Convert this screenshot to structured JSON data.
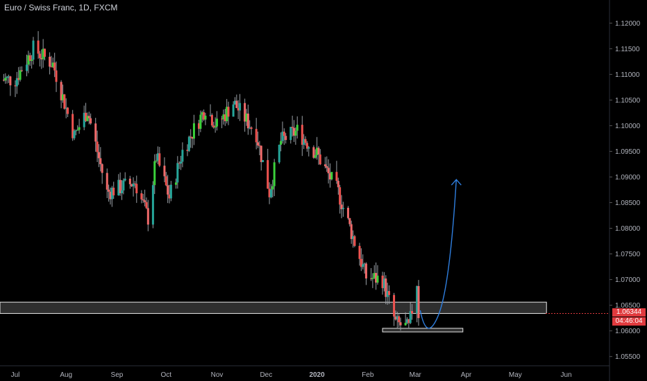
{
  "chart_data": {
    "type": "candlestick",
    "title": "Euro / Swiss Franc, 1D, FXCM",
    "x_labels": [
      "Jul",
      "Aug",
      "Sep",
      "Oct",
      "Nov",
      "Dec",
      "2020",
      "Feb",
      "Mar",
      "Apr",
      "May",
      "Jun"
    ],
    "y_ticks": [
      "1.12000",
      "1.11500",
      "1.11000",
      "1.10500",
      "1.10000",
      "1.09500",
      "1.09000",
      "1.08500",
      "1.08000",
      "1.07500",
      "1.07000",
      "1.06500",
      "1.06000",
      "1.05500"
    ],
    "ylim": [
      1.0532,
      1.1245
    ],
    "last_price": "1.06344",
    "countdown": "04:46:04",
    "key_points": [
      {
        "date": "2019-07-01",
        "value": 1.109
      },
      {
        "date": "2019-07-12",
        "value": 1.115
      },
      {
        "date": "2019-07-24",
        "value": 1.112
      },
      {
        "date": "2019-08-06",
        "value": 1.098
      },
      {
        "date": "2019-08-14",
        "value": 1.103
      },
      {
        "date": "2019-08-26",
        "value": 1.087
      },
      {
        "date": "2019-09-12",
        "value": 1.089
      },
      {
        "date": "2019-09-20",
        "value": 1.082
      },
      {
        "date": "2019-09-25",
        "value": 1.094
      },
      {
        "date": "2019-10-03",
        "value": 1.086
      },
      {
        "date": "2019-10-11",
        "value": 1.095
      },
      {
        "date": "2019-10-25",
        "value": 1.1035
      },
      {
        "date": "2019-11-01",
        "value": 1.1
      },
      {
        "date": "2019-11-11",
        "value": 1.1045
      },
      {
        "date": "2019-11-25",
        "value": 1.0985
      },
      {
        "date": "2019-12-03",
        "value": 1.087
      },
      {
        "date": "2019-12-10",
        "value": 1.097
      },
      {
        "date": "2019-12-20",
        "value": 1.099
      },
      {
        "date": "2020-01-01",
        "value": 1.0945
      },
      {
        "date": "2020-01-14",
        "value": 1.087
      },
      {
        "date": "2020-01-31",
        "value": 1.0705
      },
      {
        "date": "2020-02-10",
        "value": 1.07
      },
      {
        "date": "2020-02-18",
        "value": 1.0615
      },
      {
        "date": "2020-02-26",
        "value": 1.0605
      },
      {
        "date": "2020-03-02",
        "value": 1.0695
      },
      {
        "date": "2020-03-03",
        "value": 1.0634
      }
    ],
    "support_zones": [
      {
        "from": "2019-06-20",
        "to": "2020-05-20",
        "low": 1.0634,
        "high": 1.0656
      },
      {
        "from": "2020-02-10",
        "to": "2020-03-30",
        "low": 1.0598,
        "high": 1.0605
      }
    ],
    "projection": [
      {
        "date": "2020-03-04",
        "value": 1.064
      },
      {
        "date": "2020-03-08",
        "value": 1.06
      },
      {
        "date": "2020-03-15",
        "value": 1.063
      },
      {
        "date": "2020-03-22",
        "value": 1.075
      },
      {
        "date": "2020-03-26",
        "value": 1.0895
      }
    ],
    "colors": {
      "up": "#26a69a",
      "down": "#ef5350",
      "up_bright": "#3bd23b",
      "down_bright": "#f06a6a",
      "projection": "#2f7fe0",
      "last_price": "#e03a3e",
      "zone_fill": "#555555"
    }
  }
}
